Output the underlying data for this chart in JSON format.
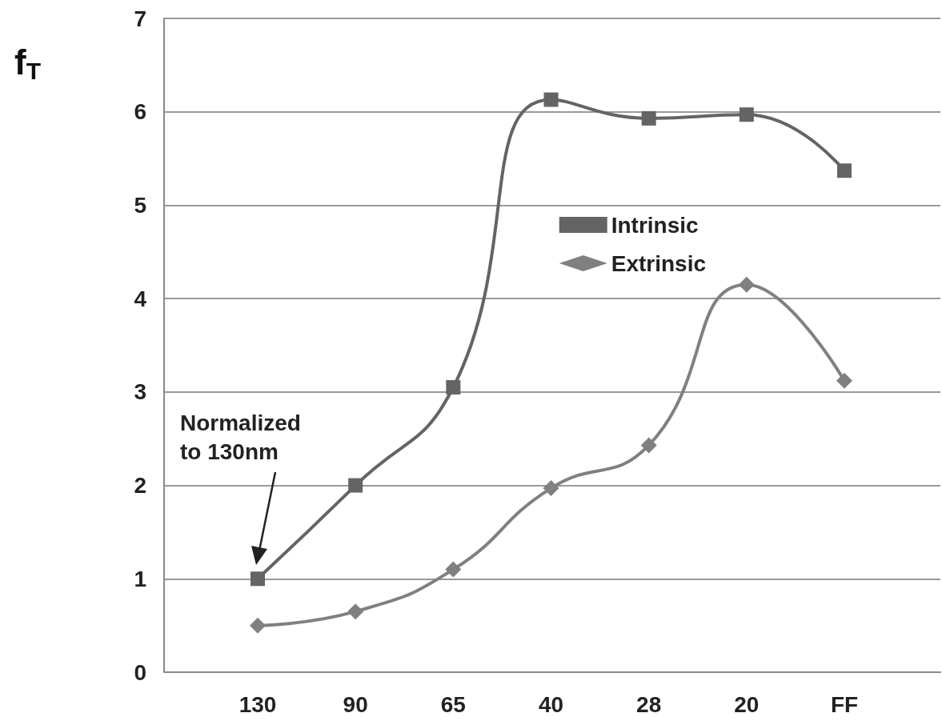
{
  "chart_data": {
    "type": "line",
    "ylabel": "f$_{T}$",
    "categories": [
      "130",
      "90",
      "65",
      "40",
      "28",
      "20",
      "FF"
    ],
    "series": [
      {
        "name": "Intrinsic",
        "color": "#646464",
        "marker": "square",
        "values": [
          1.0,
          2.0,
          3.05,
          6.13,
          5.93,
          5.97,
          5.37
        ]
      },
      {
        "name": "Extrinsic",
        "color": "#808080",
        "marker": "diamond",
        "values": [
          0.5,
          0.65,
          1.1,
          1.97,
          2.43,
          4.15,
          3.12
        ]
      }
    ],
    "ylim": [
      0,
      7
    ],
    "yticks": [
      0,
      1,
      2,
      3,
      4,
      5,
      6,
      7
    ],
    "grid": "y",
    "legend": "right",
    "annotations": [
      "Normalized to 130nm"
    ]
  }
}
